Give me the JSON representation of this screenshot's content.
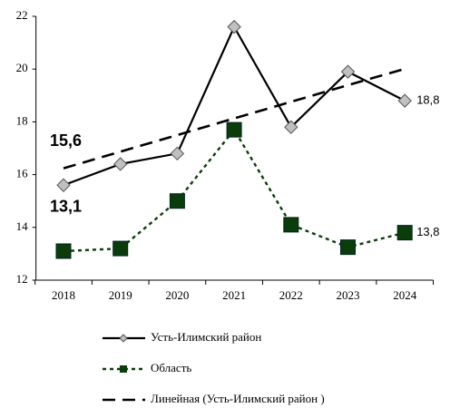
{
  "chart_data": {
    "type": "line",
    "categories": [
      "2018",
      "2019",
      "2020",
      "2021",
      "2022",
      "2023",
      "2024"
    ],
    "ylim": [
      12,
      22
    ],
    "yticks": [
      12,
      14,
      16,
      18,
      20,
      22
    ],
    "legend": "bottom",
    "series": [
      {
        "name": "Усть-Илимский район",
        "color": "#000000",
        "line_style": "solid",
        "marker": "diamond",
        "marker_color": "#c0c0c0",
        "values": [
          15.6,
          16.4,
          16.8,
          21.6,
          17.8,
          19.9,
          18.8
        ],
        "value_labels": [
          "15,6",
          null,
          null,
          null,
          null,
          null,
          "18,8"
        ]
      },
      {
        "name": "Область",
        "color": "#0b3d0b",
        "line_style": "dotted",
        "marker": "square",
        "marker_color": "#0b3d0b",
        "values": [
          13.1,
          13.2,
          15.0,
          17.7,
          14.1,
          13.25,
          13.8
        ],
        "value_labels": [
          "13,1",
          null,
          null,
          null,
          null,
          null,
          "13,8"
        ]
      },
      {
        "name": "Линейная (Усть-Илимский район )",
        "color": "#000000",
        "line_style": "dashed",
        "values": [
          16.24,
          16.87,
          17.5,
          18.13,
          18.76,
          19.39,
          20.01
        ]
      }
    ]
  }
}
